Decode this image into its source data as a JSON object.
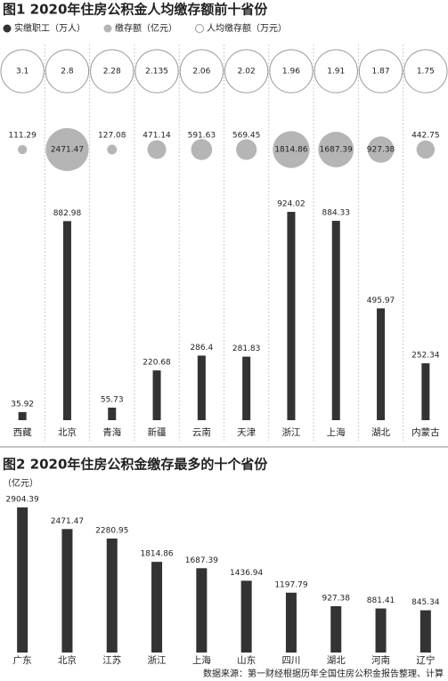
{
  "chart_data": [
    {
      "type": "combo",
      "title": "图1 2020年住房公积金人均缴存额前十省份",
      "categories": [
        "西藏",
        "北京",
        "青海",
        "新疆",
        "云南",
        "天津",
        "浙江",
        "上海",
        "湖北",
        "内蒙古"
      ],
      "series": [
        {
          "name": "实缴职工（万人）",
          "mark": "bar",
          "color": "#333333",
          "values": [
            35.92,
            882.98,
            55.73,
            220.68,
            286.4,
            281.83,
            924.02,
            884.33,
            495.97,
            252.34
          ]
        },
        {
          "name": "缴存额（亿元）",
          "mark": "bubble",
          "color": "#b5b5b5",
          "values": [
            111.29,
            2471.47,
            127.08,
            471.14,
            591.63,
            569.45,
            1814.86,
            1687.39,
            927.38,
            442.75
          ]
        },
        {
          "name": "人均缴存额（万元）",
          "mark": "ring",
          "color": "#999999",
          "values": [
            3.1,
            2.8,
            2.28,
            2.135,
            2.06,
            2.02,
            1.96,
            1.91,
            1.87,
            1.75
          ]
        }
      ]
    },
    {
      "type": "bar",
      "title": "图2  2020年住房公积金缴存最多的十个省份",
      "y_label": "（亿元）",
      "categories": [
        "广东",
        "北京",
        "江苏",
        "浙江",
        "上海",
        "山东",
        "四川",
        "湖北",
        "河南",
        "辽宁"
      ],
      "values": [
        2904.39,
        2471.47,
        2280.95,
        1814.86,
        1687.39,
        1436.94,
        1197.79,
        927.38,
        881.41,
        845.34
      ],
      "color": "#333333",
      "source": "数据来源：第一财经根据历年全国住房公积金报告整理、计算"
    }
  ]
}
